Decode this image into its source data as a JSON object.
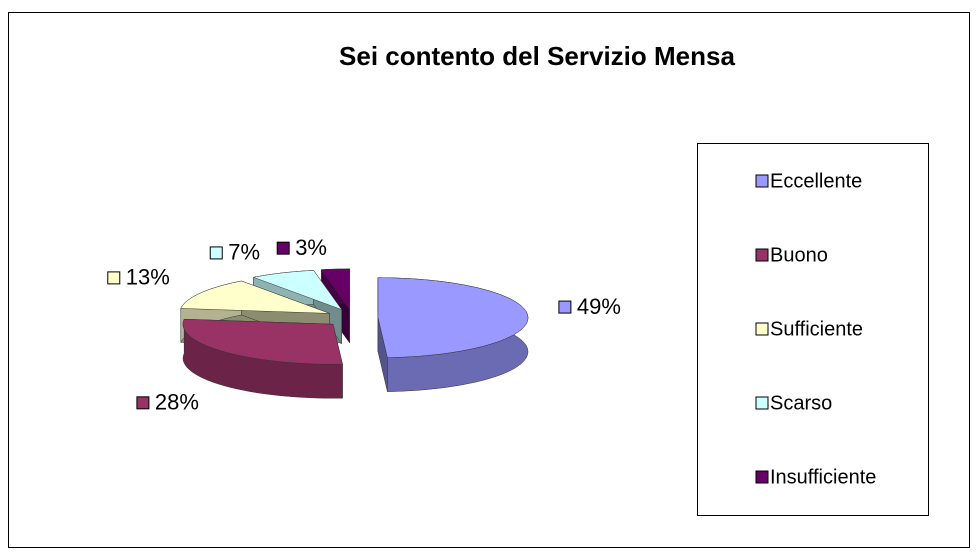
{
  "chart_data": {
    "type": "pie",
    "title": "Sei contento del Servizio Mensa",
    "categories": [
      "Eccellente",
      "Buono",
      "Sufficiente",
      "Scarso",
      "Insufficiente"
    ],
    "values": [
      49,
      28,
      13,
      7,
      3
    ],
    "value_labels": [
      "49%",
      "28%",
      "13%",
      "7%",
      "3%"
    ],
    "colors": [
      "#9999ff",
      "#993366",
      "#ffffcc",
      "#ccffff",
      "#660066"
    ],
    "legend": "right"
  }
}
